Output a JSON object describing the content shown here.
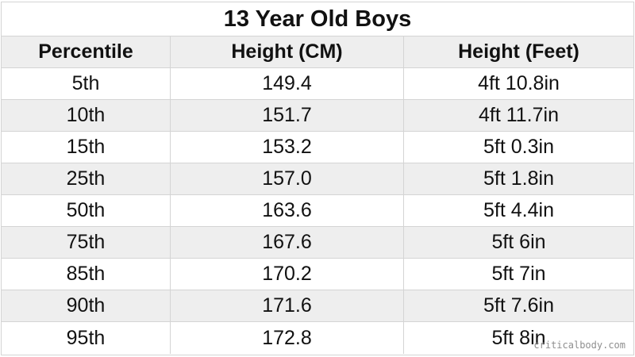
{
  "chart_data": {
    "type": "table",
    "title": "13 Year Old Boys",
    "columns": [
      "Percentile",
      "Height (CM)",
      "Height (Feet)"
    ],
    "rows": [
      [
        "5th",
        "149.4",
        "4ft 10.8in"
      ],
      [
        "10th",
        "151.7",
        "4ft 11.7in"
      ],
      [
        "15th",
        "153.2",
        "5ft 0.3in"
      ],
      [
        "25th",
        "157.0",
        "5ft 1.8in"
      ],
      [
        "50th",
        "163.6",
        "5ft 4.4in"
      ],
      [
        "75th",
        "167.6",
        "5ft 6in"
      ],
      [
        "85th",
        "170.2",
        "5ft 7in"
      ],
      [
        "90th",
        "171.6",
        "5ft 7.6in"
      ],
      [
        "95th",
        "172.8",
        "5ft 8in"
      ]
    ]
  },
  "watermark": "criticalbody.com",
  "colors": {
    "shaded_row": "#eeeeee",
    "border": "#d4d4d4",
    "text": "#111111"
  }
}
